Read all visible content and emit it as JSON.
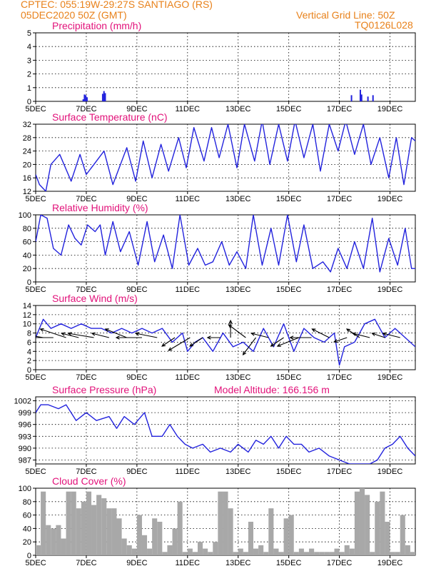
{
  "header": {
    "line1": "CPTEC:   055:19W-29:27S   SANTIAGO (RS)",
    "line2": "05DEC2020 50Z (GMT)",
    "grid_note": "Vertical Grid Line: 50Z",
    "product_code": "TQ0126L028"
  },
  "x_axis": {
    "ticks": [
      "5DEC",
      "7DEC",
      "9DEC",
      "11DEC",
      "13DEC",
      "15DEC",
      "17DEC",
      "19DEC"
    ],
    "tick_days": [
      0,
      2,
      4,
      6,
      8,
      10,
      12,
      14
    ],
    "range_days": [
      0,
      15
    ]
  },
  "colors": {
    "line": "#2222dd",
    "bar": "#a8a8a8",
    "title": "#e2127a",
    "header": "#e8811a",
    "vector": "#000000"
  },
  "chart_data": [
    {
      "type": "bar",
      "title": "Precipitation (mm/h)",
      "ylim": [
        0,
        5
      ],
      "yticks": [
        "0",
        "1",
        "2",
        "3",
        "4",
        "5"
      ],
      "x_days": [
        1.85,
        1.9,
        1.95,
        2.0,
        2.62,
        2.67,
        2.72,
        12.45,
        12.8,
        12.85,
        13.1,
        13.3
      ],
      "values": [
        0.15,
        0.5,
        0.45,
        0.3,
        0.55,
        0.75,
        0.6,
        0.45,
        0.85,
        0.5,
        0.35,
        0.45
      ]
    },
    {
      "type": "line",
      "title": "Surface Temperature (nC)",
      "ylim": [
        12,
        32
      ],
      "yticks": [
        "12",
        "16",
        "20",
        "24",
        "28",
        "32"
      ],
      "x_days": [
        0,
        0.15,
        0.4,
        0.6,
        0.95,
        1.4,
        1.75,
        2.0,
        2.3,
        2.7,
        3.05,
        3.6,
        3.95,
        4.25,
        4.6,
        4.95,
        5.25,
        5.65,
        5.95,
        6.25,
        6.65,
        6.95,
        7.25,
        7.6,
        7.95,
        8.25,
        8.65,
        8.95,
        9.25,
        9.6,
        9.95,
        10.25,
        10.6,
        10.95,
        11.25,
        11.6,
        11.95,
        12.25,
        12.6,
        12.95,
        13.25,
        13.6,
        13.95,
        14.25,
        14.55,
        14.85,
        15.0
      ],
      "values": [
        17,
        14,
        12,
        20,
        23,
        15,
        23,
        17,
        20,
        24,
        14,
        25,
        15,
        27,
        16,
        26,
        18,
        28,
        19,
        31,
        21,
        31,
        22,
        32,
        19,
        32,
        21,
        33,
        20,
        32,
        21,
        33,
        22,
        32,
        18,
        32,
        24,
        33,
        23,
        32,
        20,
        28,
        16,
        28,
        14,
        28,
        27
      ]
    },
    {
      "type": "line",
      "title": "Relative Humidity (%)",
      "ylim": [
        0,
        100
      ],
      "yticks": [
        "0",
        "20",
        "40",
        "60",
        "80",
        "100"
      ],
      "x_days": [
        0,
        0.2,
        0.45,
        0.7,
        1.0,
        1.3,
        1.55,
        1.8,
        2.05,
        2.35,
        2.55,
        2.75,
        3.05,
        3.35,
        3.7,
        4.05,
        4.4,
        4.7,
        5.05,
        5.4,
        5.7,
        6.05,
        6.4,
        6.7,
        7.0,
        7.35,
        7.65,
        7.95,
        8.3,
        8.6,
        8.95,
        9.3,
        9.6,
        9.95,
        10.3,
        10.6,
        10.95,
        11.35,
        11.65,
        11.95,
        12.3,
        12.6,
        12.95,
        13.3,
        13.6,
        13.95,
        14.3,
        14.6,
        14.85,
        15.0
      ],
      "values": [
        60,
        100,
        95,
        50,
        40,
        85,
        65,
        55,
        85,
        75,
        85,
        40,
        90,
        45,
        75,
        25,
        90,
        30,
        70,
        20,
        100,
        25,
        50,
        25,
        30,
        60,
        25,
        45,
        20,
        100,
        25,
        80,
        25,
        100,
        30,
        85,
        20,
        30,
        15,
        50,
        20,
        60,
        20,
        95,
        15,
        65,
        25,
        80,
        20,
        20
      ]
    },
    {
      "type": "line",
      "title": "Surface Wind (m/s)",
      "ylim": [
        0,
        14
      ],
      "yticks": [
        "0",
        "2",
        "4",
        "6",
        "8",
        "10",
        "12",
        "14"
      ],
      "x_days": [
        0,
        0.3,
        0.6,
        1.0,
        1.4,
        1.8,
        2.2,
        2.6,
        3.0,
        3.4,
        3.8,
        4.2,
        4.6,
        5.0,
        5.4,
        5.8,
        6.0,
        6.3,
        6.6,
        7.0,
        7.4,
        7.8,
        8.2,
        8.6,
        9.0,
        9.4,
        9.8,
        10.2,
        10.6,
        11.0,
        11.4,
        11.8,
        12.0,
        12.2,
        12.6,
        13.0,
        13.4,
        13.8,
        14.2,
        14.6,
        15.0
      ],
      "values": [
        7,
        11,
        9,
        10,
        9,
        10,
        9,
        9,
        8,
        9,
        8,
        9,
        8,
        9,
        6,
        8,
        4,
        6,
        7,
        4,
        8,
        5,
        6,
        4,
        9,
        5,
        10,
        4,
        9,
        7,
        6,
        8,
        1,
        5,
        6,
        10,
        11,
        7,
        9,
        7,
        5
      ]
    },
    {
      "type": "line",
      "title": "Surface Pressure (hPa)",
      "subtitle": "Model Altitude: 166.156 m",
      "ylim": [
        986,
        1003
      ],
      "yticks": [
        "987",
        "990",
        "993",
        "996",
        "999",
        "1002"
      ],
      "x_days": [
        0,
        0.2,
        0.5,
        0.9,
        1.2,
        1.6,
        2.0,
        2.4,
        2.9,
        3.2,
        3.5,
        3.9,
        4.3,
        4.6,
        5.0,
        5.3,
        5.6,
        5.9,
        6.2,
        6.6,
        6.9,
        7.3,
        7.7,
        8.0,
        8.4,
        8.7,
        9.0,
        9.3,
        9.6,
        9.9,
        10.2,
        10.5,
        10.8,
        11.2,
        11.6,
        12.0,
        12.4,
        12.8,
        13.2,
        13.5,
        13.8,
        14.1,
        14.4,
        14.7,
        15.0
      ],
      "values": [
        999,
        1001,
        1001,
        1000,
        1001,
        997,
        999,
        997,
        998,
        995,
        998,
        996,
        999,
        993,
        993,
        996,
        993,
        991,
        990,
        991,
        989,
        990,
        989,
        991,
        989,
        992,
        991,
        993,
        990,
        993,
        991,
        991,
        989,
        990,
        988,
        987,
        986,
        986,
        986,
        987,
        990,
        991,
        993,
        990,
        988
      ]
    },
    {
      "type": "bar",
      "title": "Cloud Cover (%)",
      "ylim": [
        0,
        100
      ],
      "yticks": [
        "0",
        "20",
        "40",
        "60",
        "80",
        "100"
      ],
      "x_days": [
        0,
        0.2,
        0.4,
        0.6,
        0.8,
        1.0,
        1.2,
        1.4,
        1.6,
        1.8,
        2.0,
        2.2,
        2.4,
        2.6,
        2.8,
        3.0,
        3.2,
        3.4,
        3.6,
        3.8,
        4.0,
        4.2,
        4.4,
        4.6,
        4.8,
        5.0,
        5.2,
        5.4,
        5.6,
        5.8,
        6.0,
        6.2,
        6.4,
        6.6,
        6.8,
        7.0,
        7.2,
        7.4,
        7.6,
        7.8,
        8.0,
        8.2,
        8.4,
        8.6,
        8.8,
        9.0,
        9.2,
        9.4,
        9.6,
        9.8,
        10.0,
        10.2,
        10.4,
        10.6,
        10.8,
        11.0,
        11.2,
        11.4,
        11.6,
        11.8,
        12.0,
        12.2,
        12.4,
        12.6,
        12.8,
        13.0,
        13.2,
        13.4,
        13.6,
        13.8,
        14.0,
        14.2,
        14.4,
        14.6,
        14.8
      ],
      "values": [
        15,
        95,
        45,
        40,
        45,
        25,
        95,
        95,
        70,
        80,
        95,
        75,
        90,
        85,
        70,
        70,
        55,
        25,
        15,
        10,
        60,
        30,
        10,
        55,
        50,
        5,
        15,
        40,
        80,
        5,
        10,
        5,
        20,
        10,
        5,
        20,
        95,
        95,
        70,
        5,
        10,
        5,
        50,
        10,
        15,
        5,
        70,
        10,
        5,
        55,
        60,
        5,
        10,
        5,
        10,
        5,
        5,
        5,
        5,
        10,
        5,
        15,
        10,
        95,
        100,
        90,
        5,
        80,
        95,
        50,
        5,
        5,
        60,
        15,
        5
      ]
    }
  ],
  "wind_vectors": {
    "x_days": [
      0.3,
      0.7,
      1.2,
      1.7,
      2.3,
      2.9,
      3.6,
      4.2,
      4.8,
      5.5,
      6.1,
      6.6,
      7.3,
      7.7,
      8.3,
      8.7,
      9.2,
      9.8,
      10.4,
      10.9,
      11.6,
      12.3,
      12.8,
      13.2,
      13.8,
      14.4
    ],
    "u": [
      -6,
      -5,
      -6,
      -4,
      -6,
      -4,
      -5,
      -6,
      -5,
      -3,
      -5,
      -3,
      -3,
      0,
      -4,
      -3,
      -4,
      -3,
      -5,
      -5,
      -4,
      -3,
      -3,
      -4,
      -3,
      -4
    ],
    "v": [
      1,
      0,
      2,
      1,
      1,
      1,
      2,
      0,
      1,
      -2,
      -3,
      -2,
      0,
      4,
      3,
      -4,
      1,
      -2,
      -2,
      0,
      2,
      -1,
      2,
      1,
      1,
      1
    ]
  }
}
